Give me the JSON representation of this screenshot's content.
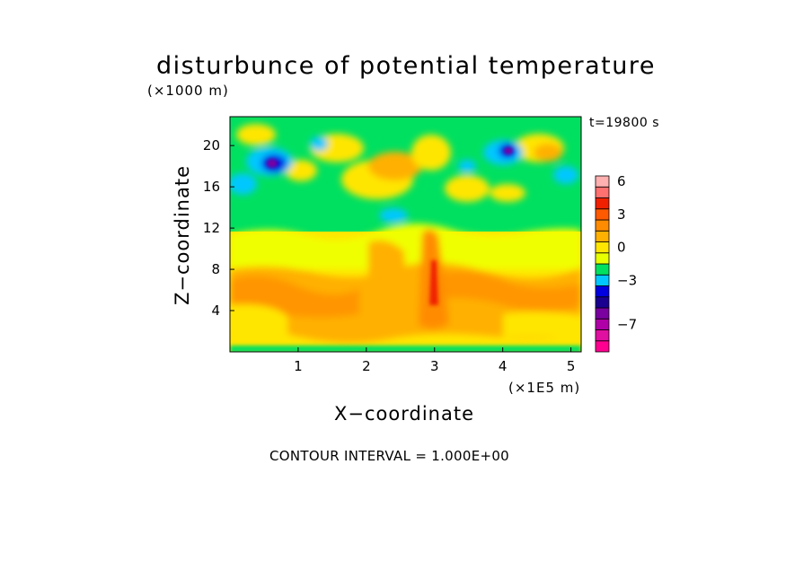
{
  "chart_data": {
    "type": "heatmap",
    "title": "disturbunce of potential temperature",
    "xlabel": "X−coordinate",
    "ylabel": "Z−coordinate",
    "x_unit": "(×1E5 m)",
    "z_unit": "(×1000 m)",
    "time_label": "t=19800 s",
    "contour_interval_label": "CONTOUR INTERVAL = 1.000E+00",
    "xlim": [
      0,
      5.15
    ],
    "ylim": [
      0,
      22.8
    ],
    "xticks": [
      1,
      2,
      3,
      4,
      5
    ],
    "yticks": [
      4,
      8,
      12,
      16,
      20
    ],
    "colorbar": {
      "levels": [
        -9,
        -8,
        -7,
        -6,
        -5,
        -4,
        -3,
        -2,
        -1,
        0,
        1,
        2,
        3,
        4,
        5,
        6,
        7
      ],
      "labels": [
        6,
        3,
        0,
        -3,
        -7
      ],
      "colors": [
        "#ff0090",
        "#e010a0",
        "#b000a8",
        "#7a00a0",
        "#1a0090",
        "#0000e0",
        "#00c8ff",
        "#00e060",
        "#e8ff00",
        "#ffe600",
        "#ffb000",
        "#ff8c00",
        "#ff5a00",
        "#f02000",
        "#ff7070",
        "#ffb0b0"
      ]
    }
  }
}
